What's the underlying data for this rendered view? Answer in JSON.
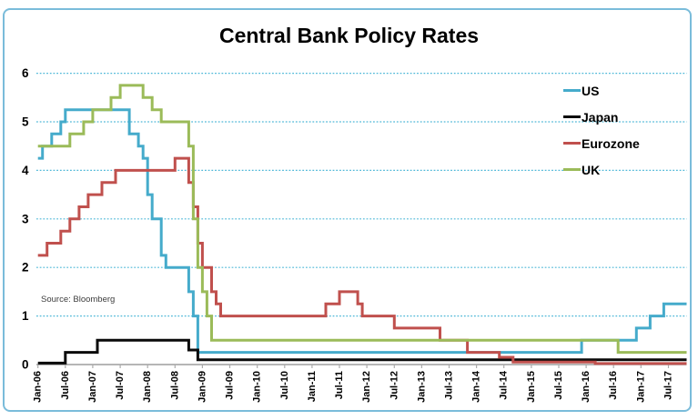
{
  "chart_data": {
    "type": "line",
    "title": "Central Bank Policy Rates",
    "source_note": "Source: Bloomberg",
    "legend_position": "upper-right",
    "grid": "horizontal-dotted",
    "x_axis": {
      "tick_labels": [
        "Jan-06",
        "Jul-06",
        "Jan-07",
        "Jul-07",
        "Jan-08",
        "Jul-08",
        "Jan-09",
        "Jul-09",
        "Jan-10",
        "Jul-10",
        "Jan-11",
        "Jul-11",
        "Jan-12",
        "Jul-12",
        "Jan-13",
        "Jul-13",
        "Jan-14",
        "Jul-14",
        "Jan-15",
        "Jul-15",
        "Jan-16",
        "Jul-16",
        "Jan-17",
        "Jul-17"
      ],
      "months_per_tick": 6,
      "end_month": 142
    },
    "y_axis": {
      "min": 0,
      "max": 6,
      "tick_interval": 1,
      "tick_labels": [
        "0",
        "1",
        "2",
        "3",
        "4",
        "5",
        "6"
      ]
    },
    "colors": {
      "grid": "#4FB8D8",
      "axis": "#9d9d9d",
      "border": "#7ABCDA"
    },
    "series": [
      {
        "name": "US",
        "color": "#45ABCB",
        "points": [
          [
            0,
            4.25
          ],
          [
            1,
            4.5
          ],
          [
            3,
            4.75
          ],
          [
            5,
            5.0
          ],
          [
            6,
            5.25
          ],
          [
            20,
            4.75
          ],
          [
            22,
            4.5
          ],
          [
            23,
            4.25
          ],
          [
            24,
            3.5
          ],
          [
            25,
            3.0
          ],
          [
            27,
            2.25
          ],
          [
            28,
            2.0
          ],
          [
            33,
            1.5
          ],
          [
            34,
            1.0
          ],
          [
            35,
            0.25
          ],
          [
            119,
            0.5
          ],
          [
            131,
            0.75
          ],
          [
            134,
            1.0
          ],
          [
            137,
            1.25
          ]
        ]
      },
      {
        "name": "Japan",
        "color": "#0a0a0a",
        "points": [
          [
            0,
            0.03
          ],
          [
            6,
            0.25
          ],
          [
            13,
            0.5
          ],
          [
            33,
            0.3
          ],
          [
            35,
            0.1
          ]
        ]
      },
      {
        "name": "Eurozone",
        "color": "#C0504D",
        "points": [
          [
            0,
            2.25
          ],
          [
            2,
            2.5
          ],
          [
            5,
            2.75
          ],
          [
            7,
            3.0
          ],
          [
            9,
            3.25
          ],
          [
            11,
            3.5
          ],
          [
            14,
            3.75
          ],
          [
            17,
            4.0
          ],
          [
            30,
            4.25
          ],
          [
            33,
            3.75
          ],
          [
            34,
            3.25
          ],
          [
            35,
            2.5
          ],
          [
            36,
            2.0
          ],
          [
            38,
            1.5
          ],
          [
            39,
            1.25
          ],
          [
            40,
            1.0
          ],
          [
            63,
            1.25
          ],
          [
            66,
            1.5
          ],
          [
            70,
            1.25
          ],
          [
            71,
            1.0
          ],
          [
            78,
            0.75
          ],
          [
            88,
            0.5
          ],
          [
            94,
            0.25
          ],
          [
            101,
            0.15
          ],
          [
            104,
            0.05
          ],
          [
            122,
            0.02
          ]
        ]
      },
      {
        "name": "UK",
        "color": "#9BBB59",
        "points": [
          [
            0,
            4.5
          ],
          [
            7,
            4.75
          ],
          [
            10,
            5.0
          ],
          [
            12,
            5.25
          ],
          [
            16,
            5.5
          ],
          [
            18,
            5.75
          ],
          [
            23,
            5.5
          ],
          [
            25,
            5.25
          ],
          [
            27,
            5.0
          ],
          [
            33,
            4.5
          ],
          [
            34,
            3.0
          ],
          [
            35,
            2.0
          ],
          [
            36,
            1.5
          ],
          [
            37,
            1.0
          ],
          [
            38,
            0.5
          ],
          [
            127,
            0.25
          ]
        ]
      }
    ]
  }
}
